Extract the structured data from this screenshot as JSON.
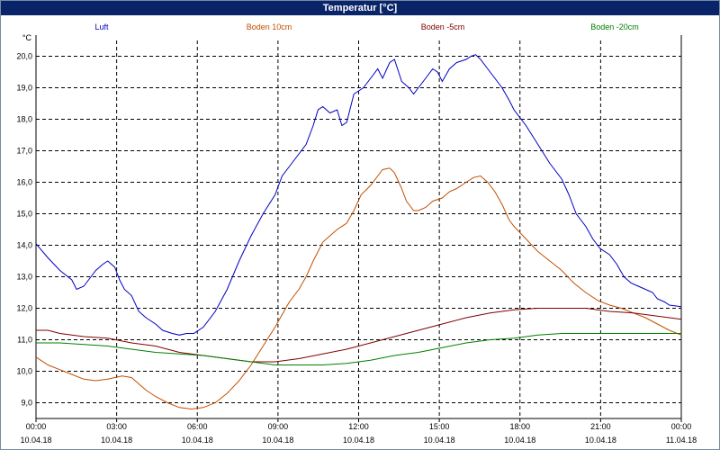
{
  "chart_data": {
    "type": "line",
    "title": "Temperatur [°C]",
    "ylabel": "°C",
    "xlabel": "",
    "ylim": [
      8.5,
      20.5
    ],
    "xlim_hours": [
      0,
      24
    ],
    "grid": true,
    "legend_position": "top",
    "y_ticks": [
      "9,0",
      "10,0",
      "11,0",
      "12,0",
      "13,0",
      "14,0",
      "15,0",
      "16,0",
      "17,0",
      "18,0",
      "19,0",
      "20,0"
    ],
    "x_ticks": [
      {
        "time": "00:00",
        "date": "10.04.18"
      },
      {
        "time": "03:00",
        "date": "10.04.18"
      },
      {
        "time": "06:00",
        "date": "10.04.18"
      },
      {
        "time": "09:00",
        "date": "10.04.18"
      },
      {
        "time": "12:00",
        "date": "10.04.18"
      },
      {
        "time": "15:00",
        "date": "10.04.18"
      },
      {
        "time": "18:00",
        "date": "10.04.18"
      },
      {
        "time": "21:00",
        "date": "10.04.18"
      },
      {
        "time": "00:00",
        "date": "11.04.18"
      }
    ],
    "series": [
      {
        "name": "Luft",
        "color": "#0000c0",
        "points": [
          [
            0,
            14.05
          ],
          [
            0.5,
            13.6
          ],
          [
            1,
            13.2
          ],
          [
            1.5,
            12.9
          ],
          [
            1.7,
            12.6
          ],
          [
            2,
            12.7
          ],
          [
            2.3,
            13.0
          ],
          [
            2.5,
            13.2
          ],
          [
            2.8,
            13.4
          ],
          [
            3,
            13.5
          ],
          [
            3.3,
            13.3
          ],
          [
            3.5,
            12.9
          ],
          [
            3.7,
            12.6
          ],
          [
            4,
            12.4
          ],
          [
            4.3,
            11.9
          ],
          [
            4.6,
            11.7
          ],
          [
            5,
            11.5
          ],
          [
            5.3,
            11.3
          ],
          [
            5.7,
            11.2
          ],
          [
            6,
            11.15
          ],
          [
            6.3,
            11.2
          ],
          [
            6.6,
            11.2
          ],
          [
            7,
            11.4
          ],
          [
            7.5,
            11.9
          ],
          [
            8,
            12.6
          ],
          [
            8.5,
            13.5
          ],
          [
            9,
            14.3
          ],
          [
            9.5,
            15.0
          ],
          [
            10,
            15.6
          ],
          [
            10.3,
            16.2
          ],
          [
            10.6,
            16.5
          ],
          [
            11,
            16.9
          ],
          [
            11.3,
            17.2
          ],
          [
            11.6,
            17.8
          ],
          [
            11.8,
            18.3
          ],
          [
            12,
            18.4
          ],
          [
            12.3,
            18.2
          ],
          [
            12.6,
            18.3
          ],
          [
            12.8,
            17.8
          ],
          [
            13,
            17.9
          ],
          [
            13.3,
            18.8
          ],
          [
            13.7,
            19.0
          ],
          [
            14,
            19.3
          ],
          [
            14.3,
            19.6
          ],
          [
            14.5,
            19.3
          ],
          [
            14.8,
            19.8
          ],
          [
            15,
            19.9
          ],
          [
            15.3,
            19.2
          ],
          [
            15.6,
            19.0
          ],
          [
            15.8,
            18.8
          ],
          [
            16,
            19.0
          ],
          [
            16.3,
            19.3
          ],
          [
            16.6,
            19.6
          ],
          [
            16.8,
            19.5
          ],
          [
            17,
            19.2
          ],
          [
            17.3,
            19.6
          ],
          [
            17.6,
            19.8
          ],
          [
            18,
            19.9
          ],
          [
            18.2,
            20.0
          ],
          [
            18.4,
            20.05
          ],
          [
            18.6,
            19.9
          ],
          [
            18.9,
            19.6
          ],
          [
            19.2,
            19.3
          ],
          [
            19.5,
            19.0
          ],
          [
            19.8,
            18.6
          ],
          [
            20,
            18.3
          ],
          [
            20.5,
            17.8
          ],
          [
            21,
            17.2
          ],
          [
            21.5,
            16.6
          ],
          [
            22,
            16.1
          ],
          [
            22.3,
            15.6
          ],
          [
            22.6,
            15.0
          ],
          [
            23,
            14.6
          ],
          [
            23.3,
            14.2
          ],
          [
            23.6,
            13.9
          ],
          [
            24,
            13.7
          ],
          [
            24.3,
            13.4
          ],
          [
            24.6,
            13.0
          ],
          [
            24.9,
            12.8
          ],
          [
            25.2,
            12.7
          ],
          [
            25.5,
            12.6
          ],
          [
            25.8,
            12.5
          ],
          [
            26,
            12.3
          ],
          [
            26.3,
            12.2
          ],
          [
            26.5,
            12.1
          ],
          [
            27,
            12.05
          ]
        ]
      },
      {
        "name": "Boden 10cm",
        "color": "#c05000",
        "points": [
          [
            0,
            10.45
          ],
          [
            0.5,
            10.2
          ],
          [
            1,
            10.05
          ],
          [
            1.5,
            9.9
          ],
          [
            2,
            9.75
          ],
          [
            2.5,
            9.7
          ],
          [
            3,
            9.75
          ],
          [
            3.3,
            9.8
          ],
          [
            3.6,
            9.85
          ],
          [
            4,
            9.8
          ],
          [
            4.3,
            9.6
          ],
          [
            4.6,
            9.4
          ],
          [
            5,
            9.2
          ],
          [
            5.5,
            9.0
          ],
          [
            6,
            8.85
          ],
          [
            6.5,
            8.8
          ],
          [
            7,
            8.85
          ],
          [
            7.5,
            9.0
          ],
          [
            8,
            9.3
          ],
          [
            8.5,
            9.7
          ],
          [
            9,
            10.2
          ],
          [
            9.5,
            10.8
          ],
          [
            10,
            11.4
          ],
          [
            10.3,
            11.8
          ],
          [
            10.6,
            12.2
          ],
          [
            11,
            12.6
          ],
          [
            11.3,
            13.0
          ],
          [
            11.6,
            13.5
          ],
          [
            12,
            14.1
          ],
          [
            12.3,
            14.3
          ],
          [
            12.6,
            14.5
          ],
          [
            13,
            14.7
          ],
          [
            13.3,
            15.1
          ],
          [
            13.6,
            15.6
          ],
          [
            14,
            15.9
          ],
          [
            14.3,
            16.2
          ],
          [
            14.5,
            16.4
          ],
          [
            14.8,
            16.45
          ],
          [
            15,
            16.3
          ],
          [
            15.3,
            15.8
          ],
          [
            15.5,
            15.4
          ],
          [
            15.8,
            15.1
          ],
          [
            16,
            15.1
          ],
          [
            16.3,
            15.2
          ],
          [
            16.6,
            15.4
          ],
          [
            17,
            15.5
          ],
          [
            17.3,
            15.7
          ],
          [
            17.6,
            15.8
          ],
          [
            18,
            16.0
          ],
          [
            18.3,
            16.15
          ],
          [
            18.6,
            16.2
          ],
          [
            18.9,
            16.0
          ],
          [
            19.2,
            15.7
          ],
          [
            19.5,
            15.3
          ],
          [
            19.8,
            14.8
          ],
          [
            20,
            14.6
          ],
          [
            20.5,
            14.2
          ],
          [
            21,
            13.8
          ],
          [
            21.5,
            13.5
          ],
          [
            22,
            13.2
          ],
          [
            22.5,
            12.8
          ],
          [
            23,
            12.5
          ],
          [
            23.5,
            12.25
          ],
          [
            24,
            12.1
          ],
          [
            24.5,
            12.0
          ],
          [
            25,
            11.85
          ],
          [
            25.5,
            11.7
          ],
          [
            26,
            11.5
          ],
          [
            26.5,
            11.3
          ],
          [
            27,
            11.15
          ]
        ]
      },
      {
        "name": "Boden -5cm",
        "color": "#800000",
        "points": [
          [
            0,
            11.3
          ],
          [
            0.5,
            11.3
          ],
          [
            1,
            11.2
          ],
          [
            2,
            11.1
          ],
          [
            3,
            11.05
          ],
          [
            4,
            10.9
          ],
          [
            5,
            10.8
          ],
          [
            6,
            10.6
          ],
          [
            7,
            10.5
          ],
          [
            8,
            10.4
          ],
          [
            9,
            10.3
          ],
          [
            10,
            10.3
          ],
          [
            11,
            10.4
          ],
          [
            12,
            10.55
          ],
          [
            13,
            10.7
          ],
          [
            14,
            10.9
          ],
          [
            15,
            11.1
          ],
          [
            16,
            11.3
          ],
          [
            17,
            11.5
          ],
          [
            18,
            11.7
          ],
          [
            19,
            11.85
          ],
          [
            20,
            11.95
          ],
          [
            21,
            12.0
          ],
          [
            22,
            12.0
          ],
          [
            23,
            12.0
          ],
          [
            24,
            11.9
          ],
          [
            25,
            11.85
          ],
          [
            26,
            11.75
          ],
          [
            27,
            11.65
          ]
        ]
      },
      {
        "name": "Boden -20cm",
        "color": "#008000",
        "points": [
          [
            0,
            10.9
          ],
          [
            1,
            10.9
          ],
          [
            2,
            10.85
          ],
          [
            3,
            10.8
          ],
          [
            4,
            10.7
          ],
          [
            5,
            10.6
          ],
          [
            6,
            10.55
          ],
          [
            7,
            10.5
          ],
          [
            8,
            10.4
          ],
          [
            9,
            10.3
          ],
          [
            10,
            10.2
          ],
          [
            11,
            10.2
          ],
          [
            12,
            10.2
          ],
          [
            13,
            10.25
          ],
          [
            14,
            10.35
          ],
          [
            15,
            10.5
          ],
          [
            16,
            10.6
          ],
          [
            17,
            10.75
          ],
          [
            18,
            10.9
          ],
          [
            19,
            11.0
          ],
          [
            20,
            11.05
          ],
          [
            21,
            11.15
          ],
          [
            22,
            11.2
          ],
          [
            23,
            11.2
          ],
          [
            24,
            11.2
          ],
          [
            25,
            11.2
          ],
          [
            26,
            11.2
          ],
          [
            27,
            11.2
          ]
        ]
      }
    ]
  }
}
